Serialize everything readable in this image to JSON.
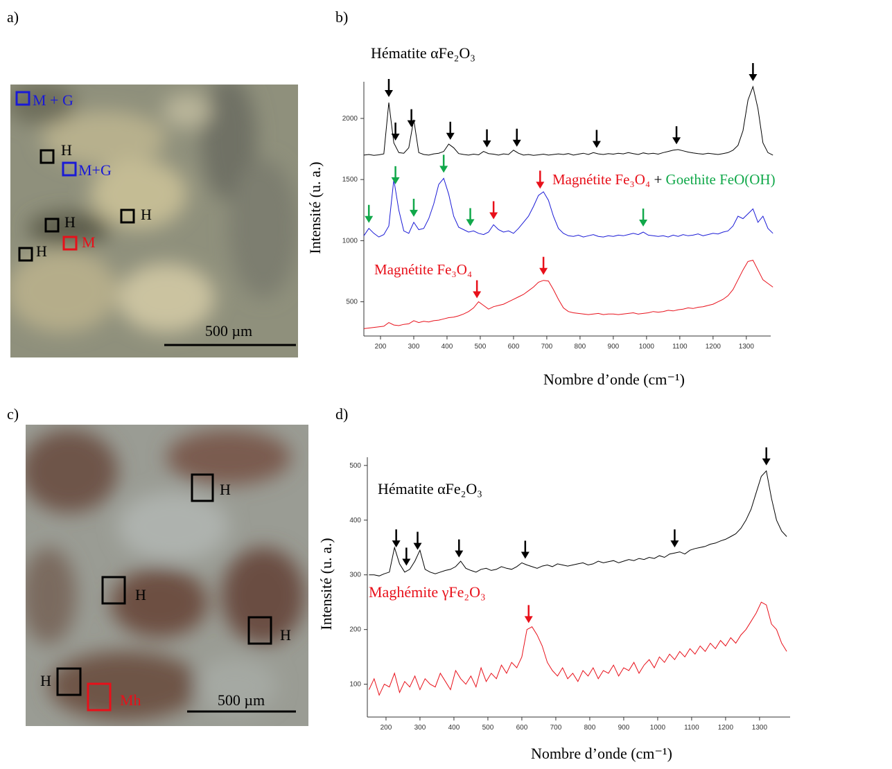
{
  "panel_labels": [
    "a)",
    "b)",
    "c)",
    "d)"
  ],
  "micrographs": [
    {
      "labels": [
        {
          "text": "M + G",
          "color": "#1a1ad6"
        },
        {
          "text": "H",
          "color": "#000000"
        },
        {
          "text": "M+G",
          "color": "#1a1ad6"
        },
        {
          "text": "H",
          "color": "#000000"
        },
        {
          "text": "H",
          "color": "#000000"
        },
        {
          "text": "M",
          "color": "#e8101a"
        },
        {
          "text": "H",
          "color": "#000000"
        }
      ],
      "scale_bar": "500 µm"
    },
    {
      "labels": [
        {
          "text": "H",
          "color": "#000000"
        },
        {
          "text": "H",
          "color": "#000000"
        },
        {
          "text": "H",
          "color": "#000000"
        },
        {
          "text": "H",
          "color": "#000000"
        },
        {
          "text": "Mh",
          "color": "#e8101a"
        }
      ],
      "scale_bar": "500 µm"
    }
  ],
  "chart_data": [
    {
      "type": "line",
      "x_label": "Nombre d’onde (cm⁻¹)",
      "y_label": "Intensité (u. a.)",
      "xlim": [
        150,
        1390
      ],
      "ylim": [
        220,
        2300
      ],
      "xticks": [
        200,
        300,
        400,
        500,
        600,
        700,
        800,
        900,
        1000,
        1100,
        1200,
        1300
      ],
      "yticks": [
        500,
        1000,
        1500,
        2000
      ],
      "annotations": [
        {
          "parts": [
            {
              "text": "Hématite αFe₂O₃",
              "color": "#000000"
            }
          ]
        },
        {
          "parts": [
            {
              "text": "Magnétite Fe₃O₄",
              "color": "#e8101a"
            },
            {
              "text": " + ",
              "color": "#000000"
            },
            {
              "text": "Goethite FeO(OH)",
              "color": "#11a84a"
            }
          ]
        },
        {
          "parts": [
            {
              "text": "Magnétite Fe₃O₄",
              "color": "#e8101a"
            }
          ]
        }
      ],
      "x": [
        150,
        165,
        180,
        195,
        210,
        225,
        240,
        255,
        270,
        285,
        300,
        315,
        330,
        345,
        360,
        375,
        390,
        405,
        420,
        435,
        450,
        465,
        480,
        495,
        510,
        525,
        540,
        555,
        570,
        585,
        600,
        615,
        630,
        645,
        660,
        675,
        690,
        705,
        720,
        735,
        750,
        765,
        780,
        795,
        810,
        825,
        840,
        855,
        870,
        885,
        900,
        915,
        930,
        945,
        960,
        975,
        990,
        1005,
        1020,
        1035,
        1050,
        1065,
        1080,
        1095,
        1110,
        1125,
        1140,
        1155,
        1170,
        1185,
        1200,
        1215,
        1230,
        1245,
        1260,
        1275,
        1290,
        1305,
        1320,
        1335,
        1350,
        1365,
        1380
      ],
      "series": [
        {
          "color": "#000000",
          "values": [
            1700,
            1705,
            1698,
            1702,
            1710,
            2130,
            1800,
            1720,
            1715,
            1760,
            1990,
            1720,
            1705,
            1700,
            1710,
            1715,
            1730,
            1790,
            1760,
            1712,
            1705,
            1700,
            1708,
            1702,
            1730,
            1712,
            1708,
            1700,
            1710,
            1705,
            1740,
            1715,
            1700,
            1705,
            1698,
            1702,
            1708,
            1700,
            1705,
            1710,
            1705,
            1712,
            1700,
            1708,
            1715,
            1705,
            1720,
            1710,
            1705,
            1712,
            1708,
            1715,
            1710,
            1720,
            1712,
            1705,
            1718,
            1710,
            1715,
            1708,
            1720,
            1730,
            1740,
            1745,
            1735,
            1725,
            1718,
            1712,
            1708,
            1715,
            1710,
            1705,
            1712,
            1720,
            1740,
            1780,
            1900,
            2150,
            2260,
            2080,
            1800,
            1720,
            1700
          ],
          "peak_arrows": [
            {
              "color": "#000000",
              "x": [
                225,
                245,
                293,
                410,
                520,
                610,
                850,
                1090,
                1320
              ]
            }
          ]
        },
        {
          "color": "#1a1ad6",
          "values": [
            1040,
            1100,
            1060,
            1030,
            1050,
            1120,
            1500,
            1250,
            1080,
            1060,
            1150,
            1090,
            1100,
            1180,
            1300,
            1460,
            1510,
            1380,
            1200,
            1110,
            1090,
            1070,
            1080,
            1060,
            1050,
            1070,
            1130,
            1090,
            1070,
            1080,
            1060,
            1100,
            1150,
            1200,
            1280,
            1370,
            1400,
            1330,
            1200,
            1100,
            1060,
            1040,
            1035,
            1045,
            1030,
            1040,
            1050,
            1035,
            1030,
            1040,
            1035,
            1045,
            1040,
            1050,
            1060,
            1050,
            1070,
            1045,
            1040,
            1035,
            1040,
            1030,
            1045,
            1035,
            1050,
            1040,
            1045,
            1055,
            1040,
            1050,
            1060,
            1055,
            1070,
            1080,
            1120,
            1200,
            1180,
            1220,
            1260,
            1150,
            1200,
            1100,
            1060
          ],
          "peak_arrows": [
            {
              "color": "#11a84a",
              "x": [
                165,
                245,
                300,
                390,
                470,
                990
              ]
            },
            {
              "color": "#e8101a",
              "x": [
                540,
                680
              ]
            }
          ]
        },
        {
          "color": "#e8101a",
          "values": [
            280,
            285,
            290,
            295,
            300,
            330,
            310,
            305,
            315,
            320,
            345,
            330,
            340,
            335,
            345,
            350,
            360,
            370,
            375,
            385,
            400,
            420,
            450,
            500,
            470,
            440,
            460,
            470,
            480,
            500,
            520,
            540,
            560,
            590,
            620,
            660,
            675,
            670,
            600,
            520,
            450,
            420,
            410,
            405,
            400,
            395,
            400,
            405,
            395,
            400,
            400,
            395,
            400,
            405,
            410,
            400,
            405,
            410,
            420,
            415,
            420,
            430,
            425,
            435,
            440,
            450,
            445,
            455,
            460,
            470,
            480,
            500,
            520,
            550,
            600,
            680,
            760,
            830,
            840,
            760,
            680,
            650,
            620
          ],
          "peak_arrows": [
            {
              "color": "#e8101a",
              "x": [
                490,
                690
              ]
            }
          ]
        }
      ]
    },
    {
      "type": "line",
      "x_label": "Nombre d’onde (cm⁻¹)",
      "y_label": "Intensité (u. a.)",
      "xlim": [
        145,
        1390
      ],
      "ylim": [
        40,
        515
      ],
      "xticks": [
        200,
        300,
        400,
        500,
        600,
        700,
        800,
        900,
        1000,
        1100,
        1200,
        1300
      ],
      "yticks": [
        100,
        200,
        300,
        400,
        500
      ],
      "annotations": [
        {
          "parts": [
            {
              "text": "Hématite αFe₂O₃",
              "color": "#000000"
            }
          ]
        },
        {
          "parts": [
            {
              "text": "Maghémite γFe₂O₃",
              "color": "#e8101a"
            }
          ]
        }
      ],
      "x": [
        150,
        165,
        180,
        195,
        210,
        225,
        240,
        255,
        270,
        285,
        300,
        315,
        330,
        345,
        360,
        375,
        390,
        405,
        420,
        435,
        450,
        465,
        480,
        495,
        510,
        525,
        540,
        555,
        570,
        585,
        600,
        615,
        630,
        645,
        660,
        675,
        690,
        705,
        720,
        735,
        750,
        765,
        780,
        795,
        810,
        825,
        840,
        855,
        870,
        885,
        900,
        915,
        930,
        945,
        960,
        975,
        990,
        1005,
        1020,
        1035,
        1050,
        1065,
        1080,
        1095,
        1110,
        1125,
        1140,
        1155,
        1170,
        1185,
        1200,
        1215,
        1230,
        1245,
        1260,
        1275,
        1290,
        1305,
        1320,
        1335,
        1350,
        1365,
        1380
      ],
      "series": [
        {
          "color": "#000000",
          "values": [
            300,
            300,
            298,
            302,
            305,
            350,
            320,
            305,
            310,
            325,
            345,
            310,
            305,
            302,
            305,
            308,
            310,
            315,
            325,
            312,
            308,
            305,
            310,
            312,
            308,
            310,
            315,
            312,
            310,
            315,
            322,
            318,
            315,
            312,
            316,
            318,
            315,
            320,
            318,
            316,
            318,
            320,
            322,
            318,
            320,
            325,
            322,
            324,
            326,
            322,
            325,
            328,
            326,
            330,
            328,
            332,
            330,
            335,
            332,
            338,
            340,
            342,
            338,
            345,
            348,
            350,
            352,
            356,
            358,
            362,
            365,
            370,
            375,
            385,
            400,
            420,
            450,
            480,
            490,
            440,
            400,
            380,
            370
          ],
          "peak_arrows": [
            {
              "color": "#000000",
              "x": [
                230,
                260,
                293,
                415,
                610,
                1050,
                1320
              ]
            }
          ]
        },
        {
          "color": "#e8101a",
          "values": [
            90,
            110,
            80,
            100,
            95,
            120,
            85,
            105,
            95,
            115,
            90,
            110,
            100,
            95,
            120,
            105,
            90,
            125,
            110,
            100,
            115,
            95,
            130,
            105,
            120,
            110,
            135,
            120,
            140,
            130,
            150,
            200,
            205,
            190,
            170,
            140,
            125,
            115,
            130,
            110,
            120,
            105,
            125,
            115,
            130,
            110,
            125,
            120,
            135,
            115,
            130,
            125,
            140,
            120,
            135,
            145,
            130,
            150,
            140,
            155,
            145,
            160,
            150,
            165,
            155,
            170,
            160,
            175,
            165,
            180,
            170,
            185,
            175,
            190,
            200,
            215,
            230,
            250,
            245,
            210,
            200,
            175,
            160
          ],
          "peak_arrows": [
            {
              "color": "#e8101a",
              "x": [
                620
              ]
            }
          ]
        }
      ]
    }
  ]
}
